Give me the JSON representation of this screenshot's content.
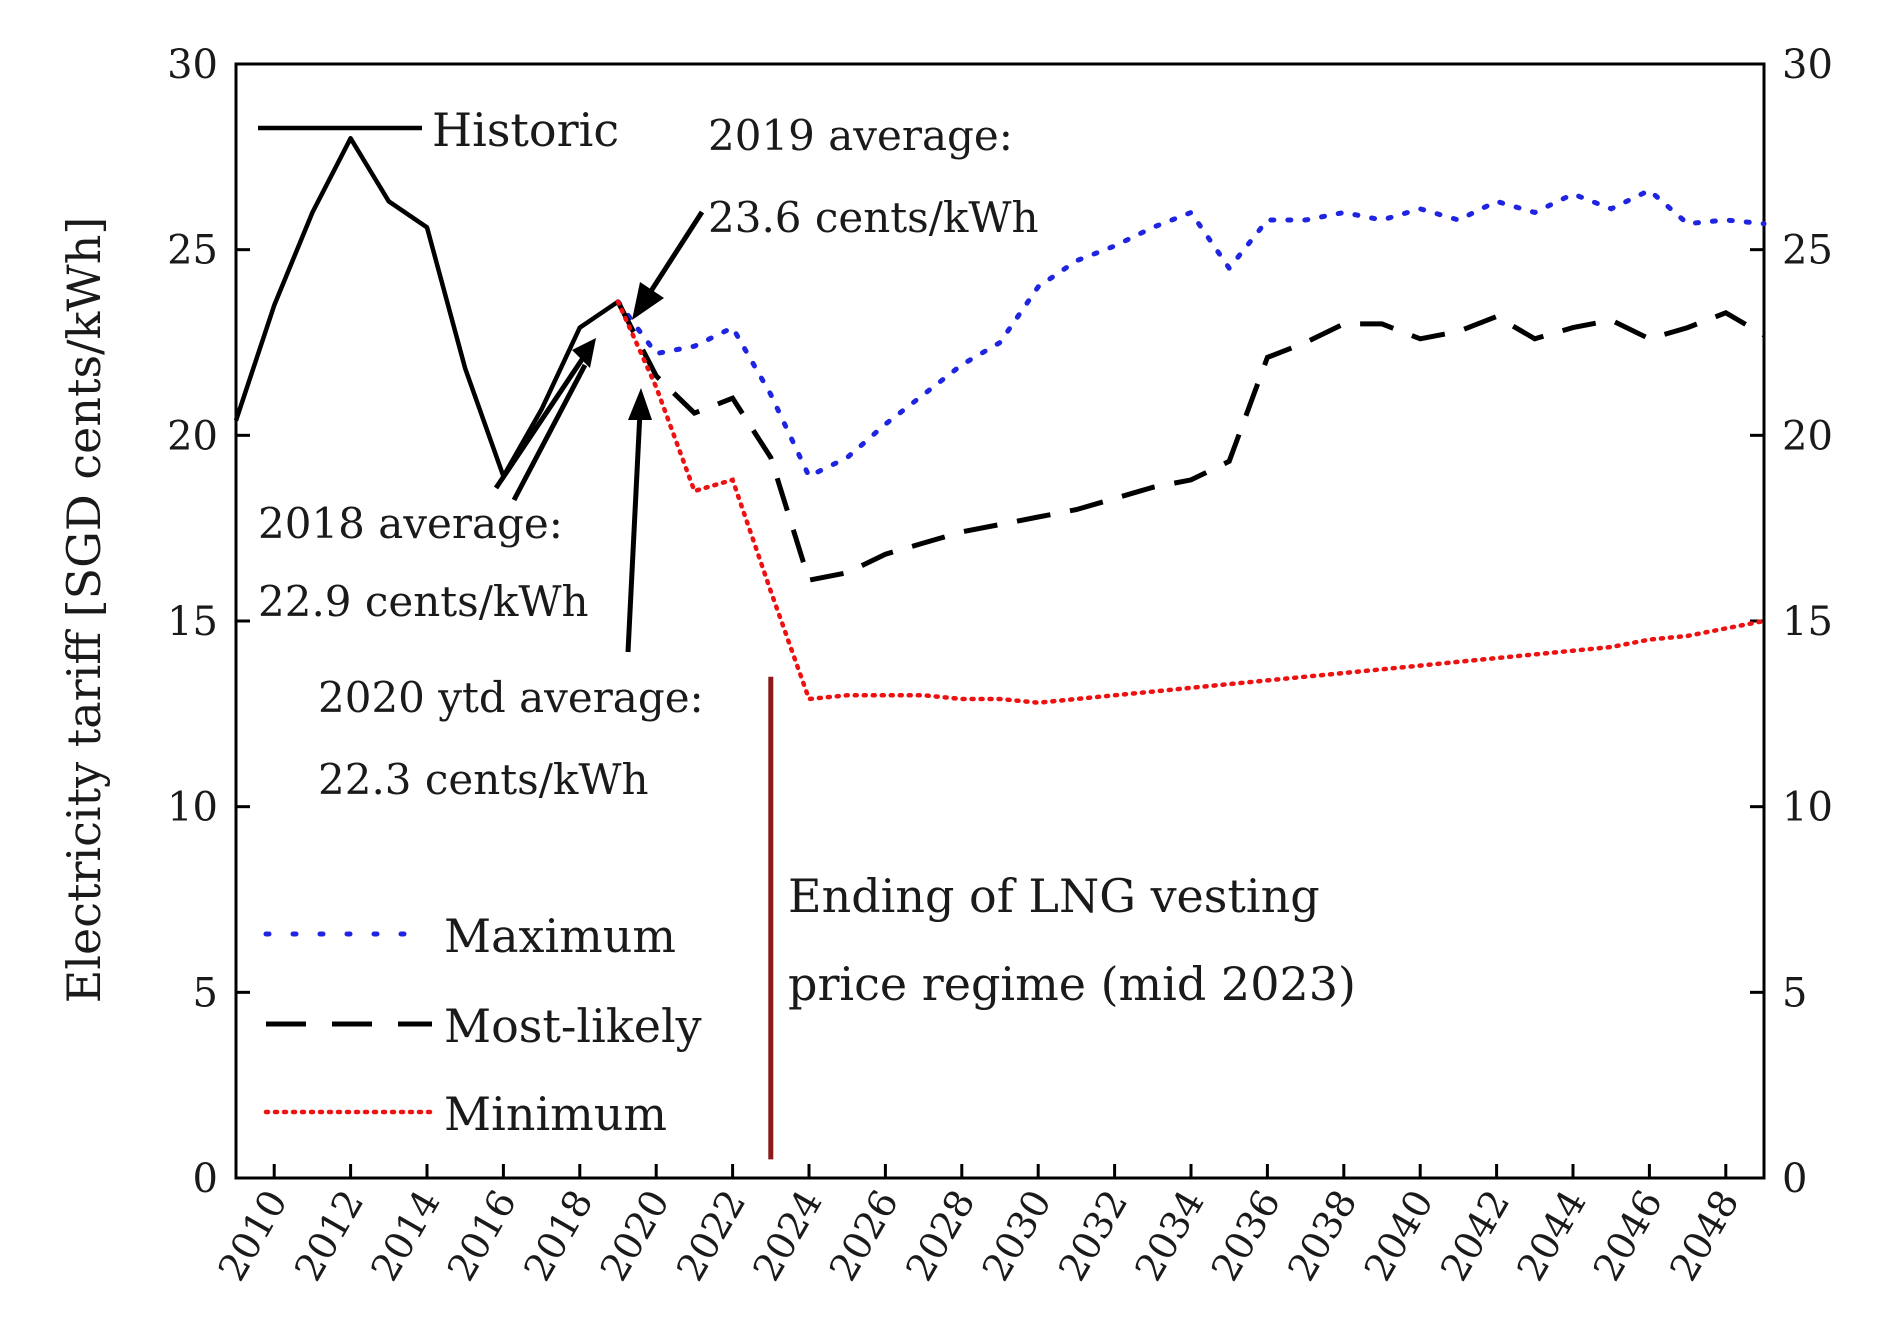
{
  "chart_data": {
    "type": "line",
    "title": "",
    "xlabel": "",
    "ylabel": "Electricity  tariff [SGD cents/kWh]",
    "xlim": [
      2009,
      2049
    ],
    "ylim": [
      0,
      30
    ],
    "yticks": [
      0,
      5,
      10,
      15,
      20,
      25,
      30
    ],
    "yticks_right": [
      0,
      5,
      10,
      15,
      20,
      25,
      30
    ],
    "xticks": [
      2010,
      2012,
      2014,
      2016,
      2018,
      2020,
      2022,
      2024,
      2026,
      2028,
      2030,
      2032,
      2034,
      2036,
      2038,
      2040,
      2042,
      2044,
      2046,
      2048
    ],
    "series": [
      {
        "name": "Historic",
        "style": "solid",
        "color": "#000000",
        "points": [
          [
            2009,
            20.4
          ],
          [
            2010,
            23.5
          ],
          [
            2011,
            26.0
          ],
          [
            2012,
            28.0
          ],
          [
            2013,
            26.3
          ],
          [
            2014,
            25.6
          ],
          [
            2015,
            21.8
          ],
          [
            2016,
            18.9
          ],
          [
            2017,
            20.7
          ],
          [
            2018,
            22.9
          ],
          [
            2019,
            23.6
          ]
        ]
      },
      {
        "name": "Maximum",
        "style": "dotted",
        "color": "#1f24e0",
        "points": [
          [
            2019,
            23.6
          ],
          [
            2020,
            22.2
          ],
          [
            2021,
            22.4
          ],
          [
            2022,
            22.9
          ],
          [
            2023,
            21.1
          ],
          [
            2024,
            18.9
          ],
          [
            2025,
            19.4
          ],
          [
            2026,
            20.3
          ],
          [
            2027,
            21.1
          ],
          [
            2028,
            21.9
          ],
          [
            2029,
            22.5
          ],
          [
            2030,
            24.0
          ],
          [
            2031,
            24.7
          ],
          [
            2032,
            25.1
          ],
          [
            2033,
            25.6
          ],
          [
            2034,
            26.0
          ],
          [
            2035,
            24.5
          ],
          [
            2036,
            25.8
          ],
          [
            2037,
            25.8
          ],
          [
            2038,
            26.0
          ],
          [
            2039,
            25.8
          ],
          [
            2040,
            26.1
          ],
          [
            2041,
            25.8
          ],
          [
            2042,
            26.3
          ],
          [
            2043,
            26.0
          ],
          [
            2044,
            26.5
          ],
          [
            2045,
            26.1
          ],
          [
            2046,
            26.6
          ],
          [
            2047,
            25.7
          ],
          [
            2048,
            25.8
          ],
          [
            2049,
            25.7
          ]
        ]
      },
      {
        "name": "Most-likely",
        "style": "dashed",
        "color": "#000000",
        "points": [
          [
            2019,
            23.6
          ],
          [
            2020,
            21.6
          ],
          [
            2021,
            20.6
          ],
          [
            2022,
            21.0
          ],
          [
            2023,
            19.4
          ],
          [
            2024,
            16.1
          ],
          [
            2025,
            16.3
          ],
          [
            2026,
            16.8
          ],
          [
            2027,
            17.1
          ],
          [
            2028,
            17.4
          ],
          [
            2029,
            17.6
          ],
          [
            2030,
            17.8
          ],
          [
            2031,
            18.0
          ],
          [
            2032,
            18.3
          ],
          [
            2033,
            18.6
          ],
          [
            2034,
            18.8
          ],
          [
            2035,
            19.3
          ],
          [
            2036,
            22.1
          ],
          [
            2037,
            22.5
          ],
          [
            2038,
            23.0
          ],
          [
            2039,
            23.0
          ],
          [
            2040,
            22.6
          ],
          [
            2041,
            22.8
          ],
          [
            2042,
            23.2
          ],
          [
            2043,
            22.6
          ],
          [
            2044,
            22.9
          ],
          [
            2045,
            23.1
          ],
          [
            2046,
            22.6
          ],
          [
            2047,
            22.9
          ],
          [
            2048,
            23.3
          ],
          [
            2049,
            22.7
          ]
        ]
      },
      {
        "name": "Minimum",
        "style": "dotted",
        "color": "#ee1111",
        "points": [
          [
            2019,
            23.6
          ],
          [
            2020,
            21.3
          ],
          [
            2021,
            18.5
          ],
          [
            2022,
            18.8
          ],
          [
            2023,
            15.8
          ],
          [
            2024,
            12.9
          ],
          [
            2025,
            13.0
          ],
          [
            2026,
            13.0
          ],
          [
            2027,
            13.0
          ],
          [
            2028,
            12.9
          ],
          [
            2029,
            12.9
          ],
          [
            2030,
            12.8
          ],
          [
            2031,
            12.9
          ],
          [
            2032,
            13.0
          ],
          [
            2033,
            13.1
          ],
          [
            2034,
            13.2
          ],
          [
            2035,
            13.3
          ],
          [
            2036,
            13.4
          ],
          [
            2037,
            13.5
          ],
          [
            2038,
            13.6
          ],
          [
            2039,
            13.7
          ],
          [
            2040,
            13.8
          ],
          [
            2041,
            13.9
          ],
          [
            2042,
            14.0
          ],
          [
            2043,
            14.1
          ],
          [
            2044,
            14.2
          ],
          [
            2045,
            14.3
          ],
          [
            2046,
            14.5
          ],
          [
            2047,
            14.6
          ],
          [
            2048,
            14.8
          ],
          [
            2049,
            15.0
          ]
        ]
      }
    ],
    "vertical_marker": {
      "x": 2023,
      "y_from": 0.5,
      "y_to": 13.5,
      "color": "#8b1a1a"
    },
    "annotations": [
      {
        "id": "a2019",
        "lines": [
          "2019 average:",
          "23.6 cents/kWh"
        ]
      },
      {
        "id": "a2018",
        "lines": [
          "2018 average:",
          "22.9 cents/kWh"
        ]
      },
      {
        "id": "a2020",
        "lines": [
          "2020 ytd average:",
          "22.3 cents/kWh"
        ]
      }
    ],
    "note": {
      "lines": [
        "Ending of LNG vesting",
        "price regime (mid 2023)"
      ]
    },
    "legend_top": {
      "label": "Historic"
    },
    "legend_bottom": [
      "Maximum",
      "Most-likely",
      "Minimum"
    ]
  }
}
